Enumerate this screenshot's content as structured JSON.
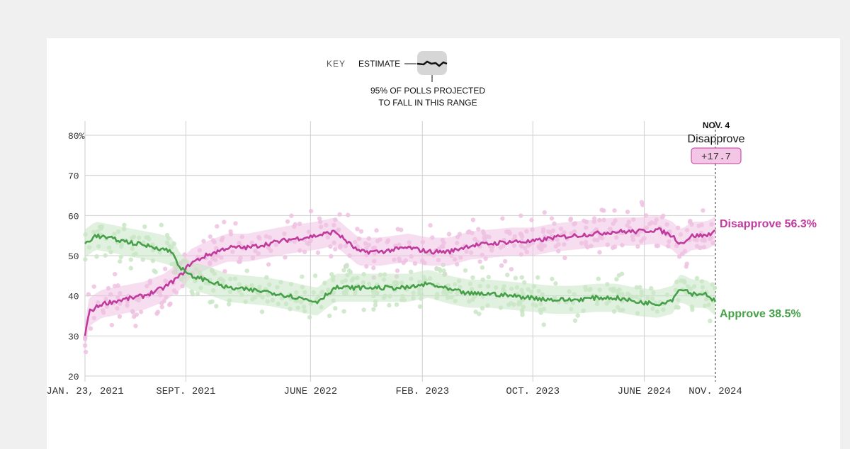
{
  "key": {
    "label": "KEY",
    "estimate_label": "ESTIMATE",
    "range_line1": "95% OF POLLS PROJECTED",
    "range_line2": "TO FALL IN THIS RANGE"
  },
  "callout": {
    "date": "NOV. 4",
    "leader": "Disapprove",
    "margin": "+17.7"
  },
  "colors": {
    "disapprove": "#c13a9d",
    "disapprove_band": "#efc1e2",
    "approve": "#46a049",
    "approve_band": "#c9e6c5",
    "grid": "#cfcfcf",
    "axis_text": "#333333"
  },
  "chart_data": {
    "type": "line",
    "ylim": [
      20,
      80
    ],
    "y_ticks": [
      20,
      30,
      40,
      50,
      60,
      70,
      80
    ],
    "y_tick_labels": [
      "20",
      "30",
      "40",
      "50",
      "60",
      "70",
      "80%"
    ],
    "x_ticks": [
      {
        "date": "2021-01-23",
        "label": "JAN. 23, 2021"
      },
      {
        "date": "2021-09-01",
        "label": "SEPT. 2021"
      },
      {
        "date": "2022-06-01",
        "label": "JUNE 2022"
      },
      {
        "date": "2023-02-01",
        "label": "FEB. 2023"
      },
      {
        "date": "2023-10-01",
        "label": "OCT. 2023"
      },
      {
        "date": "2024-06-01",
        "label": "JUNE 2024"
      },
      {
        "date": "2024-11-04",
        "label": "NOV. 2024"
      }
    ],
    "xlim": [
      "2021-01-23",
      "2024-11-04"
    ],
    "series": [
      {
        "name": "Disapprove",
        "end_label": "Disapprove 56.3%",
        "x": [
          "2021-01-23",
          "2021-02-01",
          "2021-03-01",
          "2021-04-15",
          "2021-06-01",
          "2021-07-15",
          "2021-08-20",
          "2021-09-10",
          "2021-10-15",
          "2021-12-01",
          "2022-01-15",
          "2022-03-01",
          "2022-04-15",
          "2022-06-15",
          "2022-07-25",
          "2022-09-15",
          "2022-11-01",
          "2023-01-01",
          "2023-02-15",
          "2023-04-01",
          "2023-05-15",
          "2023-07-01",
          "2023-08-15",
          "2023-10-01",
          "2023-11-15",
          "2024-01-01",
          "2024-02-15",
          "2024-04-01",
          "2024-05-15",
          "2024-07-01",
          "2024-08-01",
          "2024-08-20",
          "2024-09-15",
          "2024-10-15",
          "2024-11-04"
        ],
        "values": [
          30,
          36,
          38,
          39,
          40,
          42,
          45,
          48,
          50,
          52,
          52,
          53,
          54,
          55,
          56,
          51,
          51,
          52,
          51,
          51,
          52.5,
          53,
          53.5,
          53.5,
          54.5,
          55,
          55.5,
          56,
          56,
          56.5,
          55,
          53,
          55,
          55,
          56.3
        ]
      },
      {
        "name": "Approve",
        "end_label": "Approve 38.5%",
        "x": [
          "2021-01-23",
          "2021-02-15",
          "2021-04-01",
          "2021-05-15",
          "2021-07-01",
          "2021-08-01",
          "2021-08-20",
          "2021-09-10",
          "2021-10-15",
          "2021-12-01",
          "2022-01-15",
          "2022-03-01",
          "2022-04-15",
          "2022-06-15",
          "2022-07-25",
          "2022-09-15",
          "2022-11-01",
          "2023-01-01",
          "2023-02-15",
          "2023-04-01",
          "2023-05-15",
          "2023-07-01",
          "2023-08-15",
          "2023-10-01",
          "2023-11-15",
          "2024-01-01",
          "2024-02-15",
          "2024-04-01",
          "2024-05-15",
          "2024-07-01",
          "2024-08-01",
          "2024-08-20",
          "2024-09-15",
          "2024-10-15",
          "2024-11-04"
        ],
        "values": [
          53,
          55,
          54,
          53,
          52,
          51,
          47,
          45,
          44,
          42,
          41.5,
          41,
          40,
          38.5,
          42,
          42,
          42,
          42,
          43,
          41.5,
          40.5,
          40.5,
          40,
          39.5,
          39,
          39,
          39.5,
          39.5,
          38.5,
          38,
          39,
          42,
          40.5,
          40.5,
          38.5
        ]
      }
    ]
  }
}
